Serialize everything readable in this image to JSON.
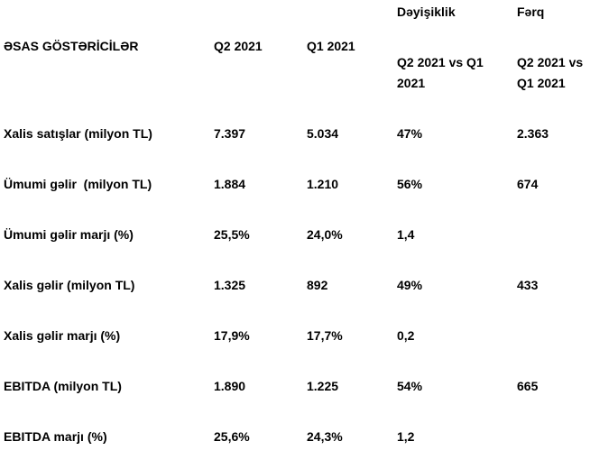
{
  "header": {
    "label": "ƏSAS GÖSTƏRİCİLƏR",
    "q2": "Q2 2021",
    "q1": "Q1 2021",
    "change": {
      "title": "Dəyişiklik",
      "subtitle": "Q2 2021 vs Q1 2021"
    },
    "diff": {
      "title": "Fərq",
      "subtitle": "Q2 2021 vs Q1 2021"
    }
  },
  "rows": [
    {
      "label": "Xalis satışlar (milyon TL)",
      "q2": "7.397",
      "q1": "5.034",
      "change": "47%",
      "diff": "2.363"
    },
    {
      "label": "Ümumi gəlir  (milyon TL)",
      "q2": "1.884",
      "q1": "1.210",
      "change": "56%",
      "diff": "674"
    },
    {
      "label": "Ümumi gəlir marjı (%)",
      "q2": "25,5%",
      "q1": "24,0%",
      "change": "1,4"
    },
    {
      "label": "Xalis gəlir (milyon TL)",
      "q2": "1.325",
      "q1": "892",
      "change": "49%",
      "diff": "433"
    },
    {
      "label": "Xalis gəlir marjı (%)",
      "q2": "17,9%",
      "q1": "17,7%",
      "change": "0,2"
    },
    {
      "label": "EBITDA (milyon TL)",
      "q2": "1.890",
      "q1": "1.225",
      "change": "54%",
      "diff": "665"
    },
    {
      "label": "EBITDA marjı (%)",
      "q2": "25,6%",
      "q1": "24,3%",
      "change": "1,2"
    }
  ]
}
